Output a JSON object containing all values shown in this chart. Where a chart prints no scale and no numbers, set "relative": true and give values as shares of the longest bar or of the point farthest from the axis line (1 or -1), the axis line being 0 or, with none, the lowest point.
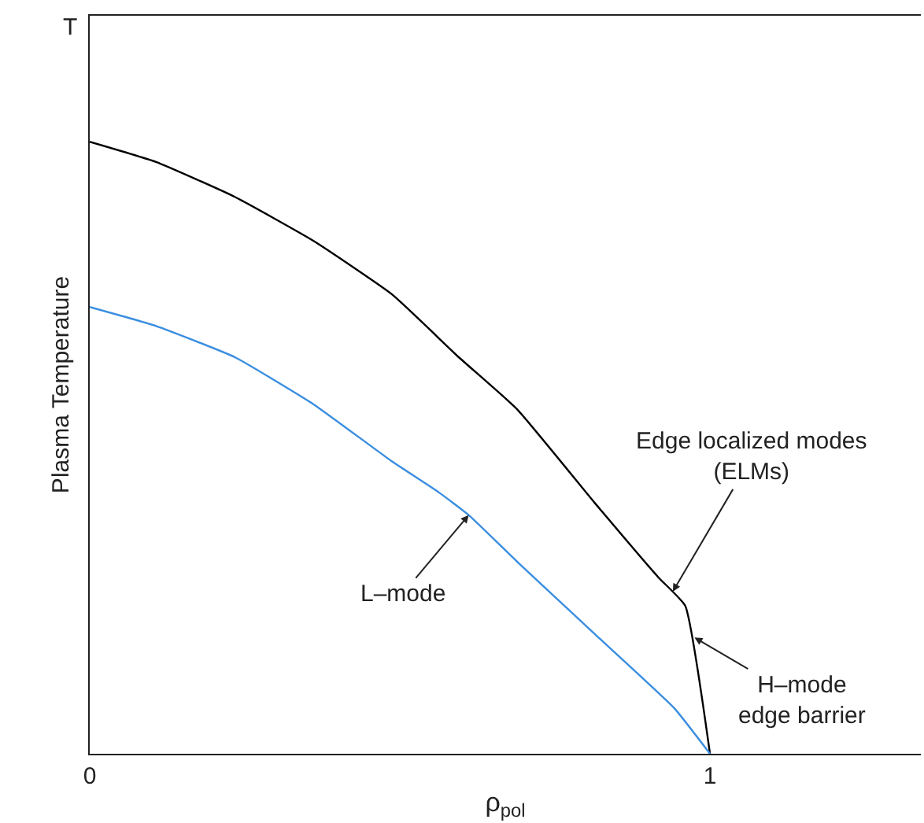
{
  "chart_data": {
    "type": "line",
    "relative": true,
    "xlabel": "ρ$_{pol}$",
    "ylabel": "Plasma Temperature",
    "xlim": [
      0,
      1.34
    ],
    "xticks": [
      0,
      1
    ],
    "marker": "none",
    "line_style": "solid",
    "series": [
      {
        "color": "#000000",
        "x": [
          0,
          0.107,
          0.234,
          0.361,
          0.487,
          0.595,
          0.689,
          0.815,
          0.917,
          0.96,
          1.0
        ],
        "values": [
          1.0,
          0.967,
          0.91,
          0.838,
          0.751,
          0.648,
          0.563,
          0.409,
          0.288,
          0.242,
          0.0
        ]
      },
      {
        "color": "#3a8ee0",
        "x": [
          0,
          0.107,
          0.234,
          0.361,
          0.487,
          0.563,
          0.611,
          0.689,
          0.815,
          0.942,
          1.0
        ],
        "values": [
          0.73,
          0.699,
          0.648,
          0.571,
          0.478,
          0.427,
          0.39,
          0.314,
          0.195,
          0.075,
          0.0
        ]
      }
    ],
    "annotations": [
      "T",
      {
        "text": "L–mode",
        "x": 0.611,
        "y": 0.39
      },
      {
        "text": "Edge localized modes\n(ELMs)",
        "x": 0.94,
        "y": 0.265
      },
      {
        "text": "H–mode\nedge barrier",
        "x": 0.975,
        "y": 0.19
      }
    ]
  }
}
